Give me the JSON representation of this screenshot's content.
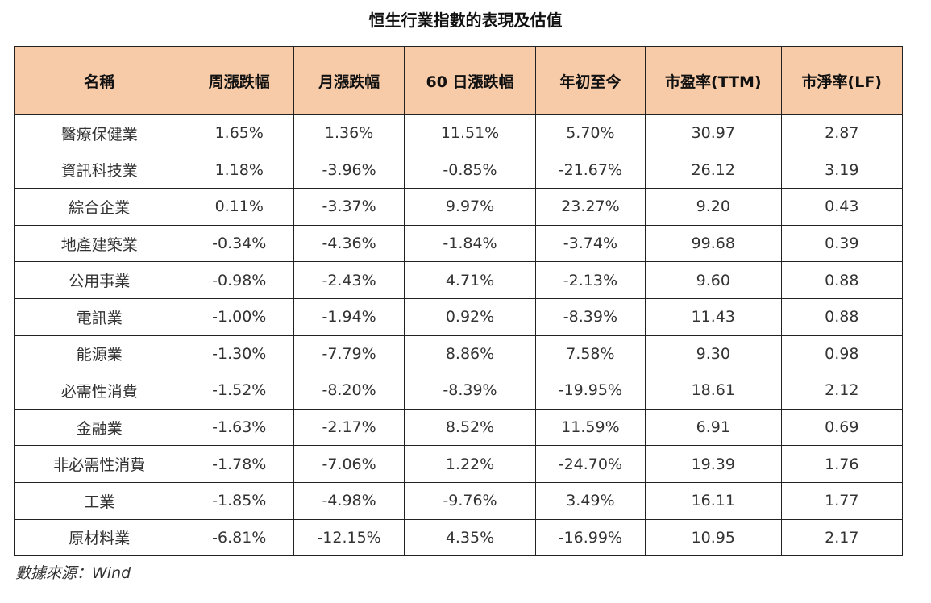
{
  "title": "恒生行業指數的表現及估值",
  "table": {
    "headers": [
      "名稱",
      "周漲跌幅",
      "月漲跌幅",
      "60 日漲跌幅",
      "年初至今",
      "市盈率(TTM)",
      "市淨率(LF)"
    ],
    "rows": [
      [
        "醫療保健業",
        "1.65%",
        "1.36%",
        "11.51%",
        "5.70%",
        "30.97",
        "2.87"
      ],
      [
        "資訊科技業",
        "1.18%",
        "-3.96%",
        "-0.85%",
        "-21.67%",
        "26.12",
        "3.19"
      ],
      [
        "綜合企業",
        "0.11%",
        "-3.37%",
        "9.97%",
        "23.27%",
        "9.20",
        "0.43"
      ],
      [
        "地產建築業",
        "-0.34%",
        "-4.36%",
        "-1.84%",
        "-3.74%",
        "99.68",
        "0.39"
      ],
      [
        "公用事業",
        "-0.98%",
        "-2.43%",
        "4.71%",
        "-2.13%",
        "9.60",
        "0.88"
      ],
      [
        "電訊業",
        "-1.00%",
        "-1.94%",
        "0.92%",
        "-8.39%",
        "11.43",
        "0.88"
      ],
      [
        "能源業",
        "-1.30%",
        "-7.79%",
        "8.86%",
        "7.58%",
        "9.30",
        "0.98"
      ],
      [
        "必需性消費",
        "-1.52%",
        "-8.20%",
        "-8.39%",
        "-19.95%",
        "18.61",
        "2.12"
      ],
      [
        "金融業",
        "-1.63%",
        "-2.17%",
        "8.52%",
        "11.59%",
        "6.91",
        "0.69"
      ],
      [
        "非必需性消費",
        "-1.78%",
        "-7.06%",
        "1.22%",
        "-24.70%",
        "19.39",
        "1.76"
      ],
      [
        "工業",
        "-1.85%",
        "-4.98%",
        "-9.76%",
        "3.49%",
        "16.11",
        "1.77"
      ],
      [
        "原材料業",
        "-6.81%",
        "-12.15%",
        "4.35%",
        "-16.99%",
        "10.95",
        "2.17"
      ]
    ]
  },
  "source": "數據來源：Wind",
  "colors": {
    "header_bg": "#f8cba8",
    "border": "#222222"
  }
}
